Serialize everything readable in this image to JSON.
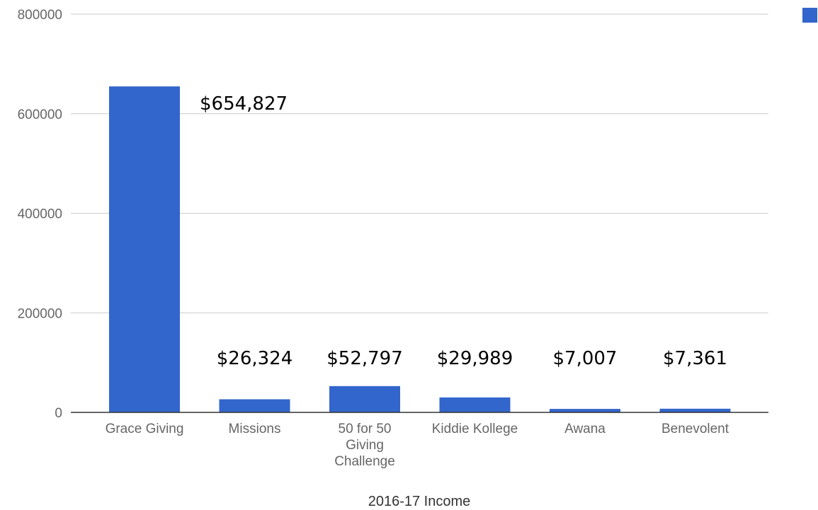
{
  "chart_data": {
    "type": "bar",
    "categories": [
      [
        "Grace Giving"
      ],
      [
        "Missions"
      ],
      [
        "50 for 50",
        "Giving",
        "Challenge"
      ],
      [
        "Kiddie Kollege"
      ],
      [
        "Awana"
      ],
      [
        "Benevolent"
      ]
    ],
    "values": [
      654827,
      26324,
      52797,
      29989,
      7007,
      7361
    ],
    "data_labels": [
      "$654,827",
      "$26,324",
      "$52,797",
      "$29,989",
      "$7,007",
      "$7,361"
    ],
    "yticks": [
      "0",
      "200000",
      "400000",
      "600000",
      "800000"
    ],
    "ylim": [
      0,
      800000
    ],
    "xlabel": "2016-17 Income",
    "ylabel": "",
    "title": "",
    "grid": true,
    "legend_position": "top-right",
    "bar_color": "#3366cc",
    "grid_color": "#cccccc",
    "baseline_color": "#333333"
  }
}
